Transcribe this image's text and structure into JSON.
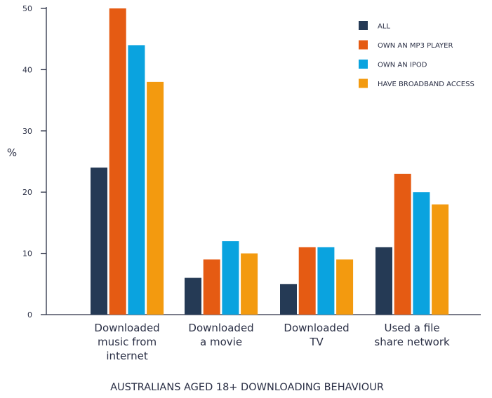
{
  "chart_data": {
    "type": "bar",
    "title": "",
    "xlabel": "AUSTRALIANS AGED 18+ DOWNLOADING BEHAVIOUR",
    "ylabel": "%",
    "ylim": [
      0,
      50
    ],
    "yticks": [
      0,
      10,
      20,
      30,
      40,
      50
    ],
    "grid": false,
    "legend_position": "top-right",
    "categories": [
      [
        "Downloaded",
        "music from",
        "internet"
      ],
      [
        "Downloaded",
        "a movie"
      ],
      [
        "Downloaded",
        "TV"
      ],
      [
        "Used a file",
        "share network"
      ]
    ],
    "series": [
      {
        "name": "ALL",
        "color": "#253a55",
        "values": [
          24,
          6,
          5,
          11
        ]
      },
      {
        "name": "OWN AN MP3 PLAYER",
        "color": "#e55b13",
        "values": [
          50,
          9,
          11,
          23
        ]
      },
      {
        "name": "OWN AN IPOD",
        "color": "#0aa3df",
        "values": [
          44,
          12,
          11,
          20
        ]
      },
      {
        "name": "HAVE BROADBAND ACCESS",
        "color": "#f39a0f",
        "values": [
          38,
          10,
          9,
          18
        ]
      }
    ]
  }
}
